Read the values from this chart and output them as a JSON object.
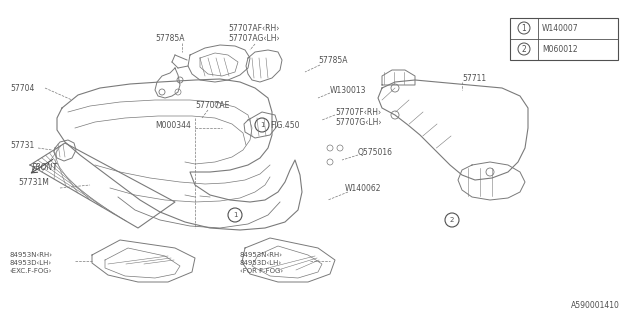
{
  "bg_color": "#ffffff",
  "line_color": "#7a7a7a",
  "text_color": "#505050",
  "legend_items": [
    {
      "symbol": "1",
      "code": "W140007"
    },
    {
      "symbol": "2",
      "code": "M060012"
    }
  ],
  "diagram_id": "A590001410"
}
